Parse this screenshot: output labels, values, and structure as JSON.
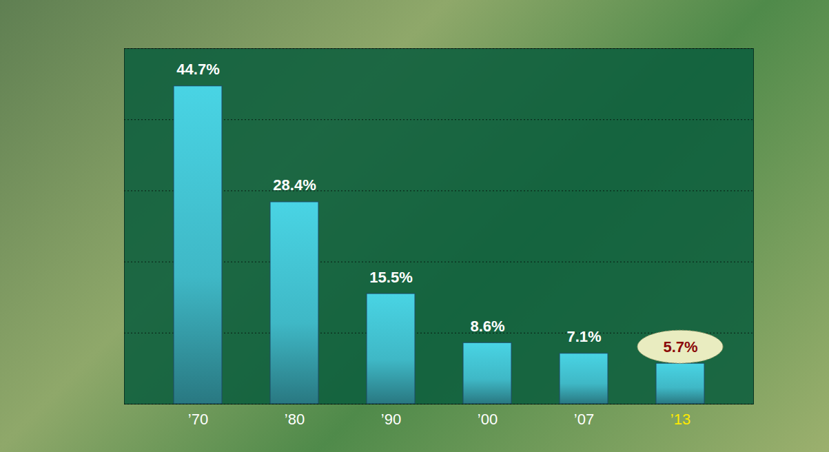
{
  "chart_data": {
    "type": "bar",
    "categories": [
      "’70",
      "’80",
      "’90",
      "’00",
      "’07",
      "’13"
    ],
    "values": [
      44.7,
      28.4,
      15.5,
      8.6,
      7.1,
      5.7
    ],
    "value_labels": [
      "44.7%",
      "28.4%",
      "15.5%",
      "8.6%",
      "7.1%",
      "5.7%"
    ],
    "color": "#3fb8c6",
    "ylim": [
      0,
      50
    ],
    "yticks": [
      0,
      10,
      20,
      30,
      40,
      50
    ],
    "grid": true,
    "data_labels": true,
    "tick_labels": "x"
  }
}
